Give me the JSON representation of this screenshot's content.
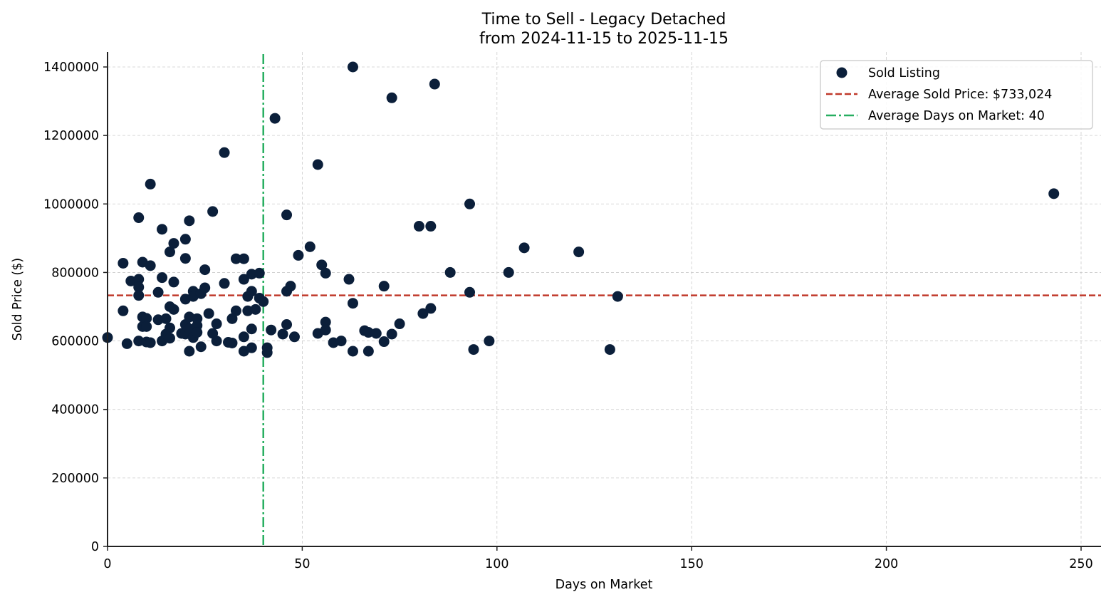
{
  "chart": {
    "title_line1": "Time to Sell - Legacy Detached",
    "title_line2": "from 2024-11-15 to 2025-11-15",
    "xlabel": "Days on Market",
    "ylabel": "Sold Price ($)",
    "legend": {
      "sold_listing": "Sold Listing",
      "avg_price": "Average Sold Price: $733,024",
      "avg_days": "Average Days on Market: 40"
    },
    "colors": {
      "point": "#0b1f3a",
      "avg_price_line": "#c0392b",
      "avg_days_line": "#27ae60",
      "grid": "#cccccc",
      "axis": "#222222"
    }
  },
  "chart_data": {
    "type": "scatter",
    "title": "Time to Sell - Legacy Detached\nfrom 2024-11-15 to 2025-11-15",
    "xlabel": "Days on Market",
    "ylabel": "Sold Price ($)",
    "xlim": [
      0,
      255
    ],
    "ylim": [
      0,
      1440000
    ],
    "x_ticks": [
      0,
      50,
      100,
      150,
      200,
      250
    ],
    "y_ticks": [
      0,
      200000,
      400000,
      600000,
      800000,
      1000000,
      1200000,
      1400000
    ],
    "grid": true,
    "legend_position": "upper right",
    "reference_lines": {
      "avg_sold_price": 733024,
      "avg_days_on_market": 40
    },
    "series": [
      {
        "name": "Sold Listing",
        "points": [
          [
            0,
            610000
          ],
          [
            4,
            827000
          ],
          [
            4,
            688000
          ],
          [
            5,
            592000
          ],
          [
            6,
            775000
          ],
          [
            8,
            960000
          ],
          [
            8,
            780000
          ],
          [
            8,
            757000
          ],
          [
            8,
            733000
          ],
          [
            8,
            600000
          ],
          [
            9,
            830000
          ],
          [
            9,
            670000
          ],
          [
            9,
            642000
          ],
          [
            10,
            666000
          ],
          [
            10,
            642000
          ],
          [
            10,
            597000
          ],
          [
            11,
            1058000
          ],
          [
            11,
            820000
          ],
          [
            11,
            595000
          ],
          [
            13,
            742000
          ],
          [
            13,
            662000
          ],
          [
            14,
            926000
          ],
          [
            14,
            785000
          ],
          [
            14,
            600000
          ],
          [
            15,
            665000
          ],
          [
            15,
            620000
          ],
          [
            16,
            860000
          ],
          [
            16,
            700000
          ],
          [
            16,
            638000
          ],
          [
            16,
            608000
          ],
          [
            17,
            885000
          ],
          [
            17,
            772000
          ],
          [
            17,
            692000
          ],
          [
            19,
            622000
          ],
          [
            20,
            897000
          ],
          [
            20,
            841000
          ],
          [
            20,
            722000
          ],
          [
            20,
            648000
          ],
          [
            20,
            620000
          ],
          [
            21,
            951000
          ],
          [
            21,
            670000
          ],
          [
            21,
            635000
          ],
          [
            21,
            570000
          ],
          [
            22,
            745000
          ],
          [
            22,
            730000
          ],
          [
            22,
            610000
          ],
          [
            23,
            665000
          ],
          [
            23,
            645000
          ],
          [
            23,
            625000
          ],
          [
            24,
            738000
          ],
          [
            24,
            583000
          ],
          [
            25,
            808000
          ],
          [
            25,
            755000
          ],
          [
            26,
            680000
          ],
          [
            27,
            978000
          ],
          [
            27,
            622000
          ],
          [
            28,
            650000
          ],
          [
            28,
            600000
          ],
          [
            30,
            1150000
          ],
          [
            30,
            768000
          ],
          [
            31,
            596000
          ],
          [
            32,
            665000
          ],
          [
            32,
            594000
          ],
          [
            33,
            840000
          ],
          [
            33,
            688000
          ],
          [
            35,
            840000
          ],
          [
            35,
            780000
          ],
          [
            35,
            612000
          ],
          [
            35,
            570000
          ],
          [
            36,
            730000
          ],
          [
            36,
            688000
          ],
          [
            37,
            795000
          ],
          [
            37,
            745000
          ],
          [
            37,
            635000
          ],
          [
            37,
            580000
          ],
          [
            38,
            692000
          ],
          [
            39,
            798000
          ],
          [
            39,
            725000
          ],
          [
            40,
            715000
          ],
          [
            41,
            580000
          ],
          [
            41,
            566000
          ],
          [
            42,
            632000
          ],
          [
            43,
            1250000
          ],
          [
            45,
            620000
          ],
          [
            46,
            968000
          ],
          [
            46,
            745000
          ],
          [
            46,
            648000
          ],
          [
            47,
            760000
          ],
          [
            48,
            612000
          ],
          [
            49,
            850000
          ],
          [
            52,
            875000
          ],
          [
            54,
            1115000
          ],
          [
            54,
            622000
          ],
          [
            55,
            822000
          ],
          [
            56,
            798000
          ],
          [
            56,
            655000
          ],
          [
            56,
            632000
          ],
          [
            58,
            595000
          ],
          [
            60,
            600000
          ],
          [
            62,
            780000
          ],
          [
            63,
            1400000
          ],
          [
            63,
            710000
          ],
          [
            63,
            570000
          ],
          [
            66,
            630000
          ],
          [
            67,
            625000
          ],
          [
            67,
            570000
          ],
          [
            69,
            622000
          ],
          [
            71,
            760000
          ],
          [
            71,
            598000
          ],
          [
            73,
            1310000
          ],
          [
            73,
            620000
          ],
          [
            75,
            650000
          ],
          [
            80,
            935000
          ],
          [
            81,
            680000
          ],
          [
            83,
            935000
          ],
          [
            83,
            695000
          ],
          [
            84,
            1350000
          ],
          [
            88,
            800000
          ],
          [
            93,
            1000000
          ],
          [
            93,
            742000
          ],
          [
            94,
            575000
          ],
          [
            98,
            600000
          ],
          [
            103,
            800000
          ],
          [
            107,
            872000
          ],
          [
            121,
            860000
          ],
          [
            129,
            575000
          ],
          [
            131,
            730000
          ],
          [
            243,
            1030000
          ]
        ]
      }
    ]
  }
}
